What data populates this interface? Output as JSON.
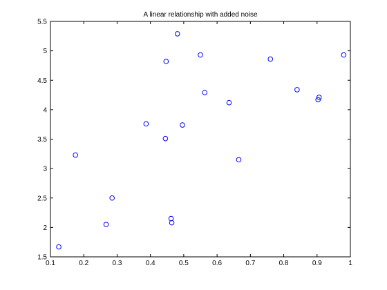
{
  "chart_data": {
    "type": "scatter",
    "title": "A linear relationship with added noise",
    "xlabel": "",
    "ylabel": "",
    "xlim": [
      0.1,
      1.0
    ],
    "ylim": [
      1.5,
      5.5
    ],
    "x_ticks": [
      "0.1",
      "0.2",
      "0.3",
      "0.4",
      "0.5",
      "0.6",
      "0.7",
      "0.8",
      "0.9",
      "1"
    ],
    "y_ticks": [
      "1.5",
      "2",
      "2.5",
      "3",
      "3.5",
      "4",
      "4.5",
      "5",
      "5.5"
    ],
    "grid": false,
    "marker": "circle",
    "marker_filled": false,
    "color": "#0000ff",
    "series": [
      {
        "x": [
          0.125,
          0.175,
          0.267,
          0.285,
          0.387,
          0.445,
          0.447,
          0.462,
          0.464,
          0.481,
          0.496,
          0.55,
          0.563,
          0.636,
          0.665,
          0.76,
          0.84,
          0.903,
          0.906,
          0.98
        ],
        "y": [
          1.67,
          3.23,
          2.05,
          2.5,
          3.76,
          3.51,
          4.82,
          2.15,
          2.08,
          5.29,
          3.74,
          4.93,
          4.29,
          4.12,
          3.15,
          4.86,
          4.34,
          4.17,
          4.21,
          4.93
        ]
      }
    ]
  }
}
